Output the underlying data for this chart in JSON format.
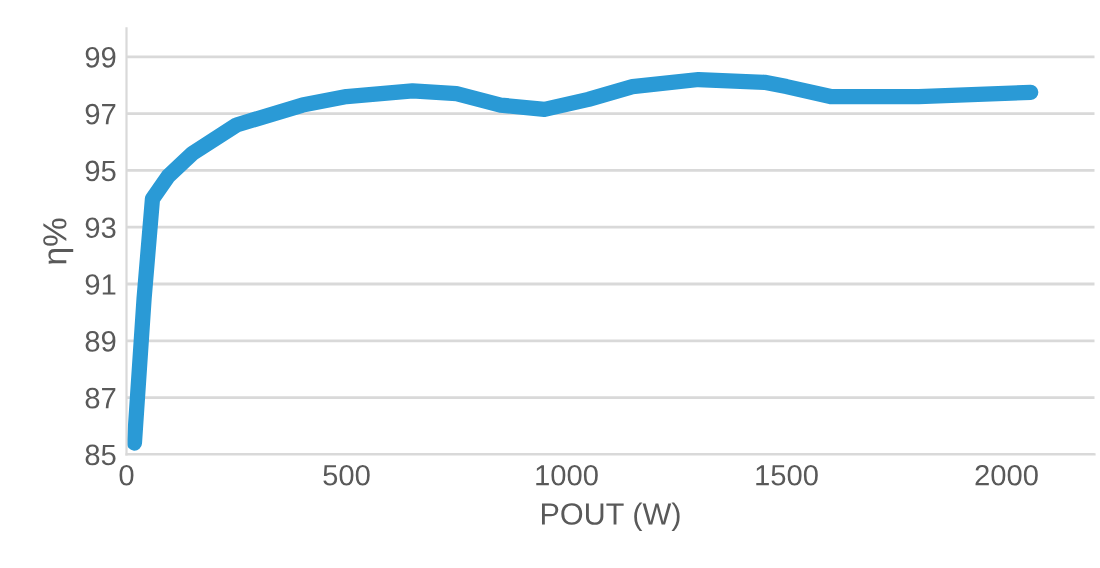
{
  "chart_data": {
    "type": "line",
    "xlabel": "POUT (W)",
    "ylabel": "η%",
    "x": [
      18,
      40,
      59,
      95,
      150,
      250,
      400,
      500,
      650,
      750,
      850,
      950,
      1050,
      1150,
      1300,
      1450,
      1500,
      1600,
      1800,
      2055
    ],
    "series": [
      {
        "color": "#2a9ad6",
        "values": [
          85.4,
          90.5,
          94.0,
          94.8,
          95.6,
          96.6,
          97.3,
          97.6,
          97.8,
          97.7,
          97.3,
          97.15,
          97.5,
          97.95,
          98.2,
          98.1,
          97.95,
          97.6,
          97.6,
          97.75
        ]
      }
    ],
    "xlim": [
      0,
      2200
    ],
    "xticks": [
      0,
      500,
      1000,
      1500,
      2000
    ],
    "ylim": [
      85,
      100
    ],
    "yticks": [
      85,
      87,
      89,
      91,
      93,
      95,
      97,
      99
    ],
    "grid": "y",
    "legend": false,
    "marker": "none",
    "line_style": "solid"
  }
}
